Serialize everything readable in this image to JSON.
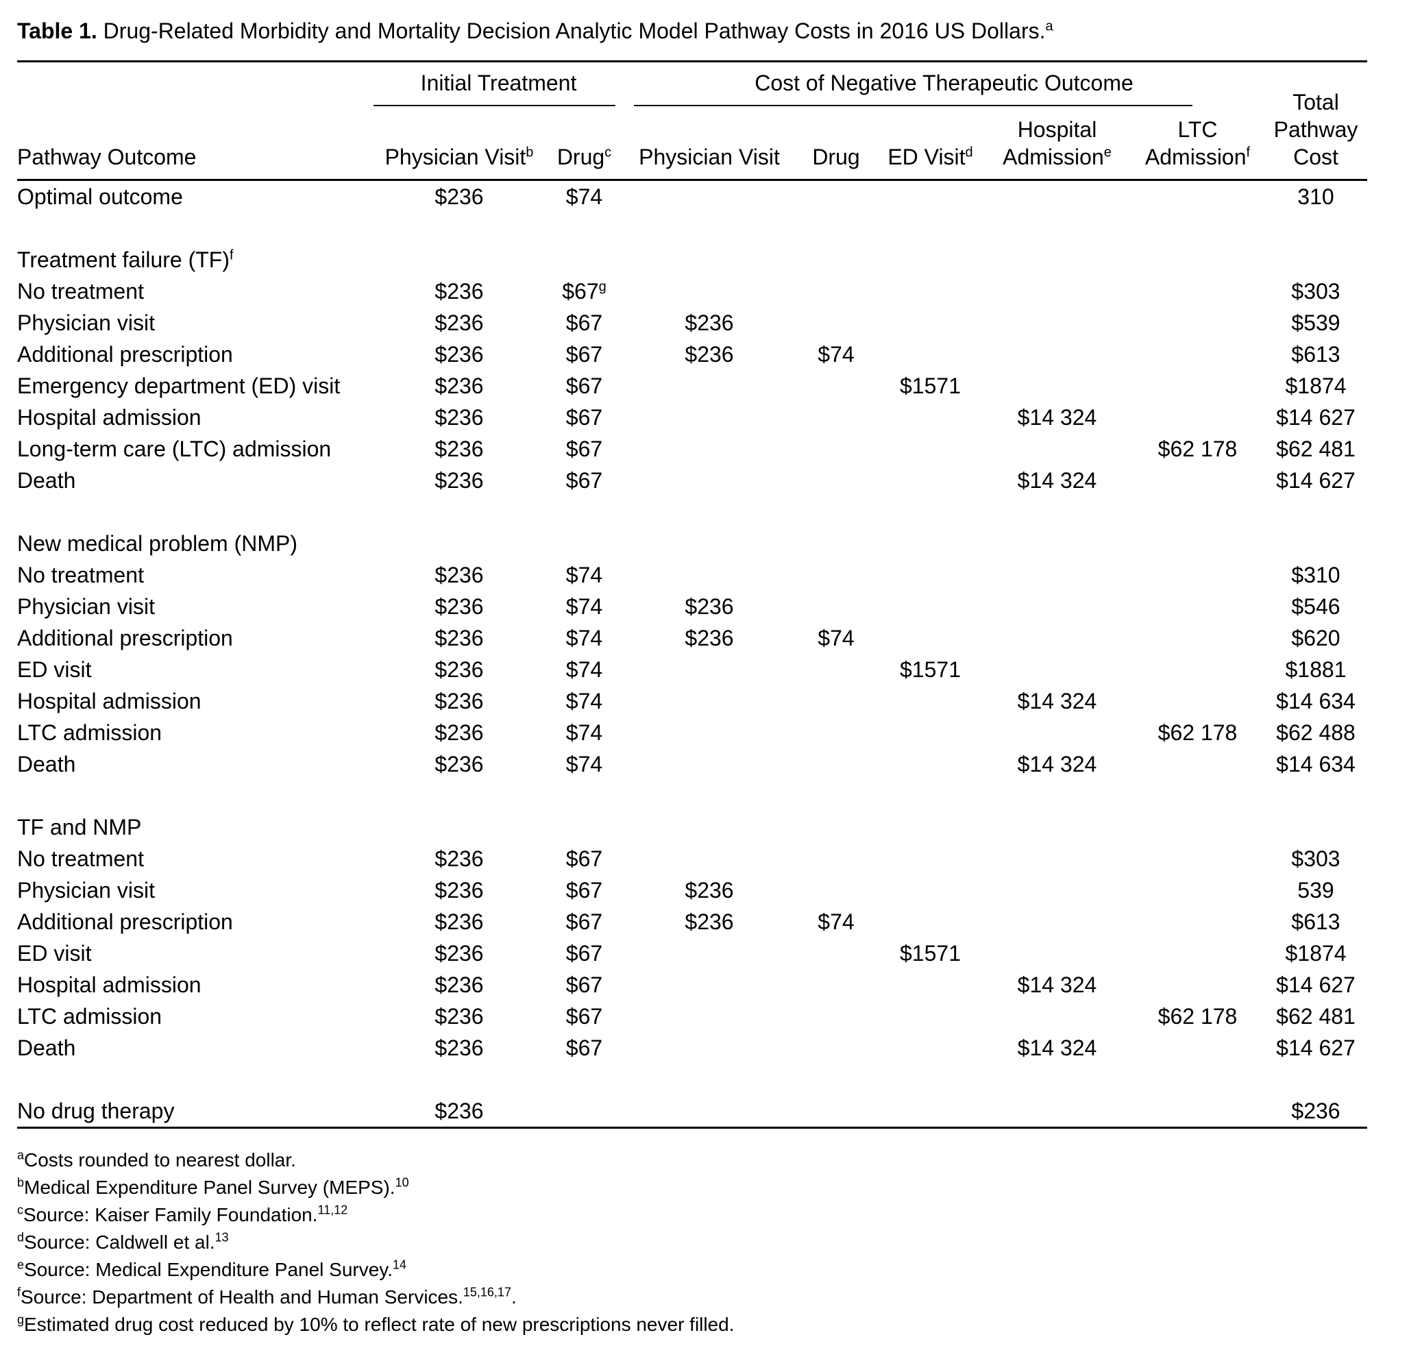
{
  "page": {
    "background": "#ffffff",
    "text_color": "#000000"
  },
  "title": {
    "label": "Table 1.",
    "text": " Drug-Related Morbidity and Mortality Decision Analytic Model Pathway Costs in 2016 US Dollars.",
    "sup": "a"
  },
  "table": {
    "spanners": [
      {
        "label": "Initial Treatment"
      },
      {
        "label": "Cost of Negative Therapeutic Outcome"
      }
    ],
    "columns": [
      {
        "label": "Pathway Outcome",
        "sup": ""
      },
      {
        "label": "Physician Visit",
        "sup": "b"
      },
      {
        "label": "Drug",
        "sup": "c"
      },
      {
        "label": "Physician Visit",
        "sup": ""
      },
      {
        "label": "Drug",
        "sup": ""
      },
      {
        "label": "ED Visit",
        "sup": "d"
      },
      {
        "label": "Hospital Admission",
        "sup": "e"
      },
      {
        "label": "LTC Admission",
        "sup": "f"
      },
      {
        "label": "Total Pathway Cost",
        "sup": ""
      }
    ],
    "rows": [
      {
        "type": "data",
        "label": "Optimal outcome",
        "cells": [
          "$236",
          "$74",
          "",
          "",
          "",
          "",
          "",
          "310"
        ]
      },
      {
        "type": "spacer"
      },
      {
        "type": "section",
        "label": "Treatment failure (TF)",
        "sup": "f"
      },
      {
        "type": "data",
        "label": "No treatment",
        "cells": [
          "$236",
          {
            "v": "$67",
            "sup": "g"
          },
          "",
          "",
          "",
          "",
          "",
          "$303"
        ]
      },
      {
        "type": "data",
        "label": "Physician visit",
        "cells": [
          "$236",
          "$67",
          "$236",
          "",
          "",
          "",
          "",
          "$539"
        ]
      },
      {
        "type": "data",
        "label": "Additional prescription",
        "cells": [
          "$236",
          "$67",
          "$236",
          "$74",
          "",
          "",
          "",
          "$613"
        ]
      },
      {
        "type": "data",
        "label": "Emergency department (ED) visit",
        "cells": [
          "$236",
          "$67",
          "",
          "",
          "$1571",
          "",
          "",
          "$1874"
        ]
      },
      {
        "type": "data",
        "label": "Hospital admission",
        "cells": [
          "$236",
          "$67",
          "",
          "",
          "",
          "$14 324",
          "",
          "$14 627"
        ]
      },
      {
        "type": "data",
        "label": "Long-term care (LTC) admission",
        "cells": [
          "$236",
          "$67",
          "",
          "",
          "",
          "",
          "$62 178",
          "$62 481"
        ]
      },
      {
        "type": "data",
        "label": "Death",
        "cells": [
          "$236",
          "$67",
          "",
          "",
          "",
          "$14 324",
          "",
          "$14 627"
        ]
      },
      {
        "type": "spacer"
      },
      {
        "type": "section",
        "label": "New medical problem (NMP)",
        "sup": ""
      },
      {
        "type": "data",
        "label": "No treatment",
        "cells": [
          "$236",
          "$74",
          "",
          "",
          "",
          "",
          "",
          "$310"
        ]
      },
      {
        "type": "data",
        "label": "Physician visit",
        "cells": [
          "$236",
          "$74",
          "$236",
          "",
          "",
          "",
          "",
          "$546"
        ]
      },
      {
        "type": "data",
        "label": "Additional prescription",
        "cells": [
          "$236",
          "$74",
          "$236",
          "$74",
          "",
          "",
          "",
          "$620"
        ]
      },
      {
        "type": "data",
        "label": "ED visit",
        "cells": [
          "$236",
          "$74",
          "",
          "",
          "$1571",
          "",
          "",
          "$1881"
        ]
      },
      {
        "type": "data",
        "label": "Hospital admission",
        "cells": [
          "$236",
          "$74",
          "",
          "",
          "",
          "$14 324",
          "",
          "$14 634"
        ]
      },
      {
        "type": "data",
        "label": "LTC admission",
        "cells": [
          "$236",
          "$74",
          "",
          "",
          "",
          "",
          "$62 178",
          "$62 488"
        ]
      },
      {
        "type": "data",
        "label": "Death",
        "cells": [
          "$236",
          "$74",
          "",
          "",
          "",
          "$14 324",
          "",
          "$14 634"
        ]
      },
      {
        "type": "spacer"
      },
      {
        "type": "section",
        "label": "TF and NMP",
        "sup": ""
      },
      {
        "type": "data",
        "label": "No treatment",
        "cells": [
          "$236",
          "$67",
          "",
          "",
          "",
          "",
          "",
          "$303"
        ]
      },
      {
        "type": "data",
        "label": "Physician visit",
        "cells": [
          "$236",
          "$67",
          "$236",
          "",
          "",
          "",
          "",
          "539"
        ]
      },
      {
        "type": "data",
        "label": "Additional prescription",
        "cells": [
          "$236",
          "$67",
          "$236",
          "$74",
          "",
          "",
          "",
          "$613"
        ]
      },
      {
        "type": "data",
        "label": "ED visit",
        "cells": [
          "$236",
          "$67",
          "",
          "",
          "$1571",
          "",
          "",
          "$1874"
        ]
      },
      {
        "type": "data",
        "label": "Hospital admission",
        "cells": [
          "$236",
          "$67",
          "",
          "",
          "",
          "$14 324",
          "",
          "$14 627"
        ]
      },
      {
        "type": "data",
        "label": "LTC admission",
        "cells": [
          "$236",
          "$67",
          "",
          "",
          "",
          "",
          "$62 178",
          "$62 481"
        ]
      },
      {
        "type": "data",
        "label": "Death",
        "cells": [
          "$236",
          "$67",
          "",
          "",
          "",
          "$14 324",
          "",
          "$14 627"
        ]
      },
      {
        "type": "spacer"
      },
      {
        "type": "data",
        "label": "No drug therapy",
        "cells": [
          "$236",
          "",
          "",
          "",
          "",
          "",
          "",
          "$236"
        ]
      }
    ]
  },
  "footnotes": [
    {
      "sup": "a",
      "text": "Costs rounded to nearest dollar.",
      "refs": "",
      "after": ""
    },
    {
      "sup": "b",
      "text": "Medical Expenditure Panel Survey (MEPS).",
      "refs": "10",
      "after": ""
    },
    {
      "sup": "c",
      "text": "Source: Kaiser Family Foundation.",
      "refs": "11,12",
      "after": ""
    },
    {
      "sup": "d",
      "text": "Source: Caldwell et al.",
      "refs": "13",
      "after": ""
    },
    {
      "sup": "e",
      "text": "Source: Medical Expenditure Panel Survey.",
      "refs": "14",
      "after": ""
    },
    {
      "sup": "f",
      "text": "Source: Department of Health and Human Services.",
      "refs": "15,16,17",
      "after": "."
    },
    {
      "sup": "g",
      "text": "Estimated drug cost reduced by 10% to reflect rate of new prescriptions never filled.",
      "refs": "",
      "after": ""
    }
  ]
}
